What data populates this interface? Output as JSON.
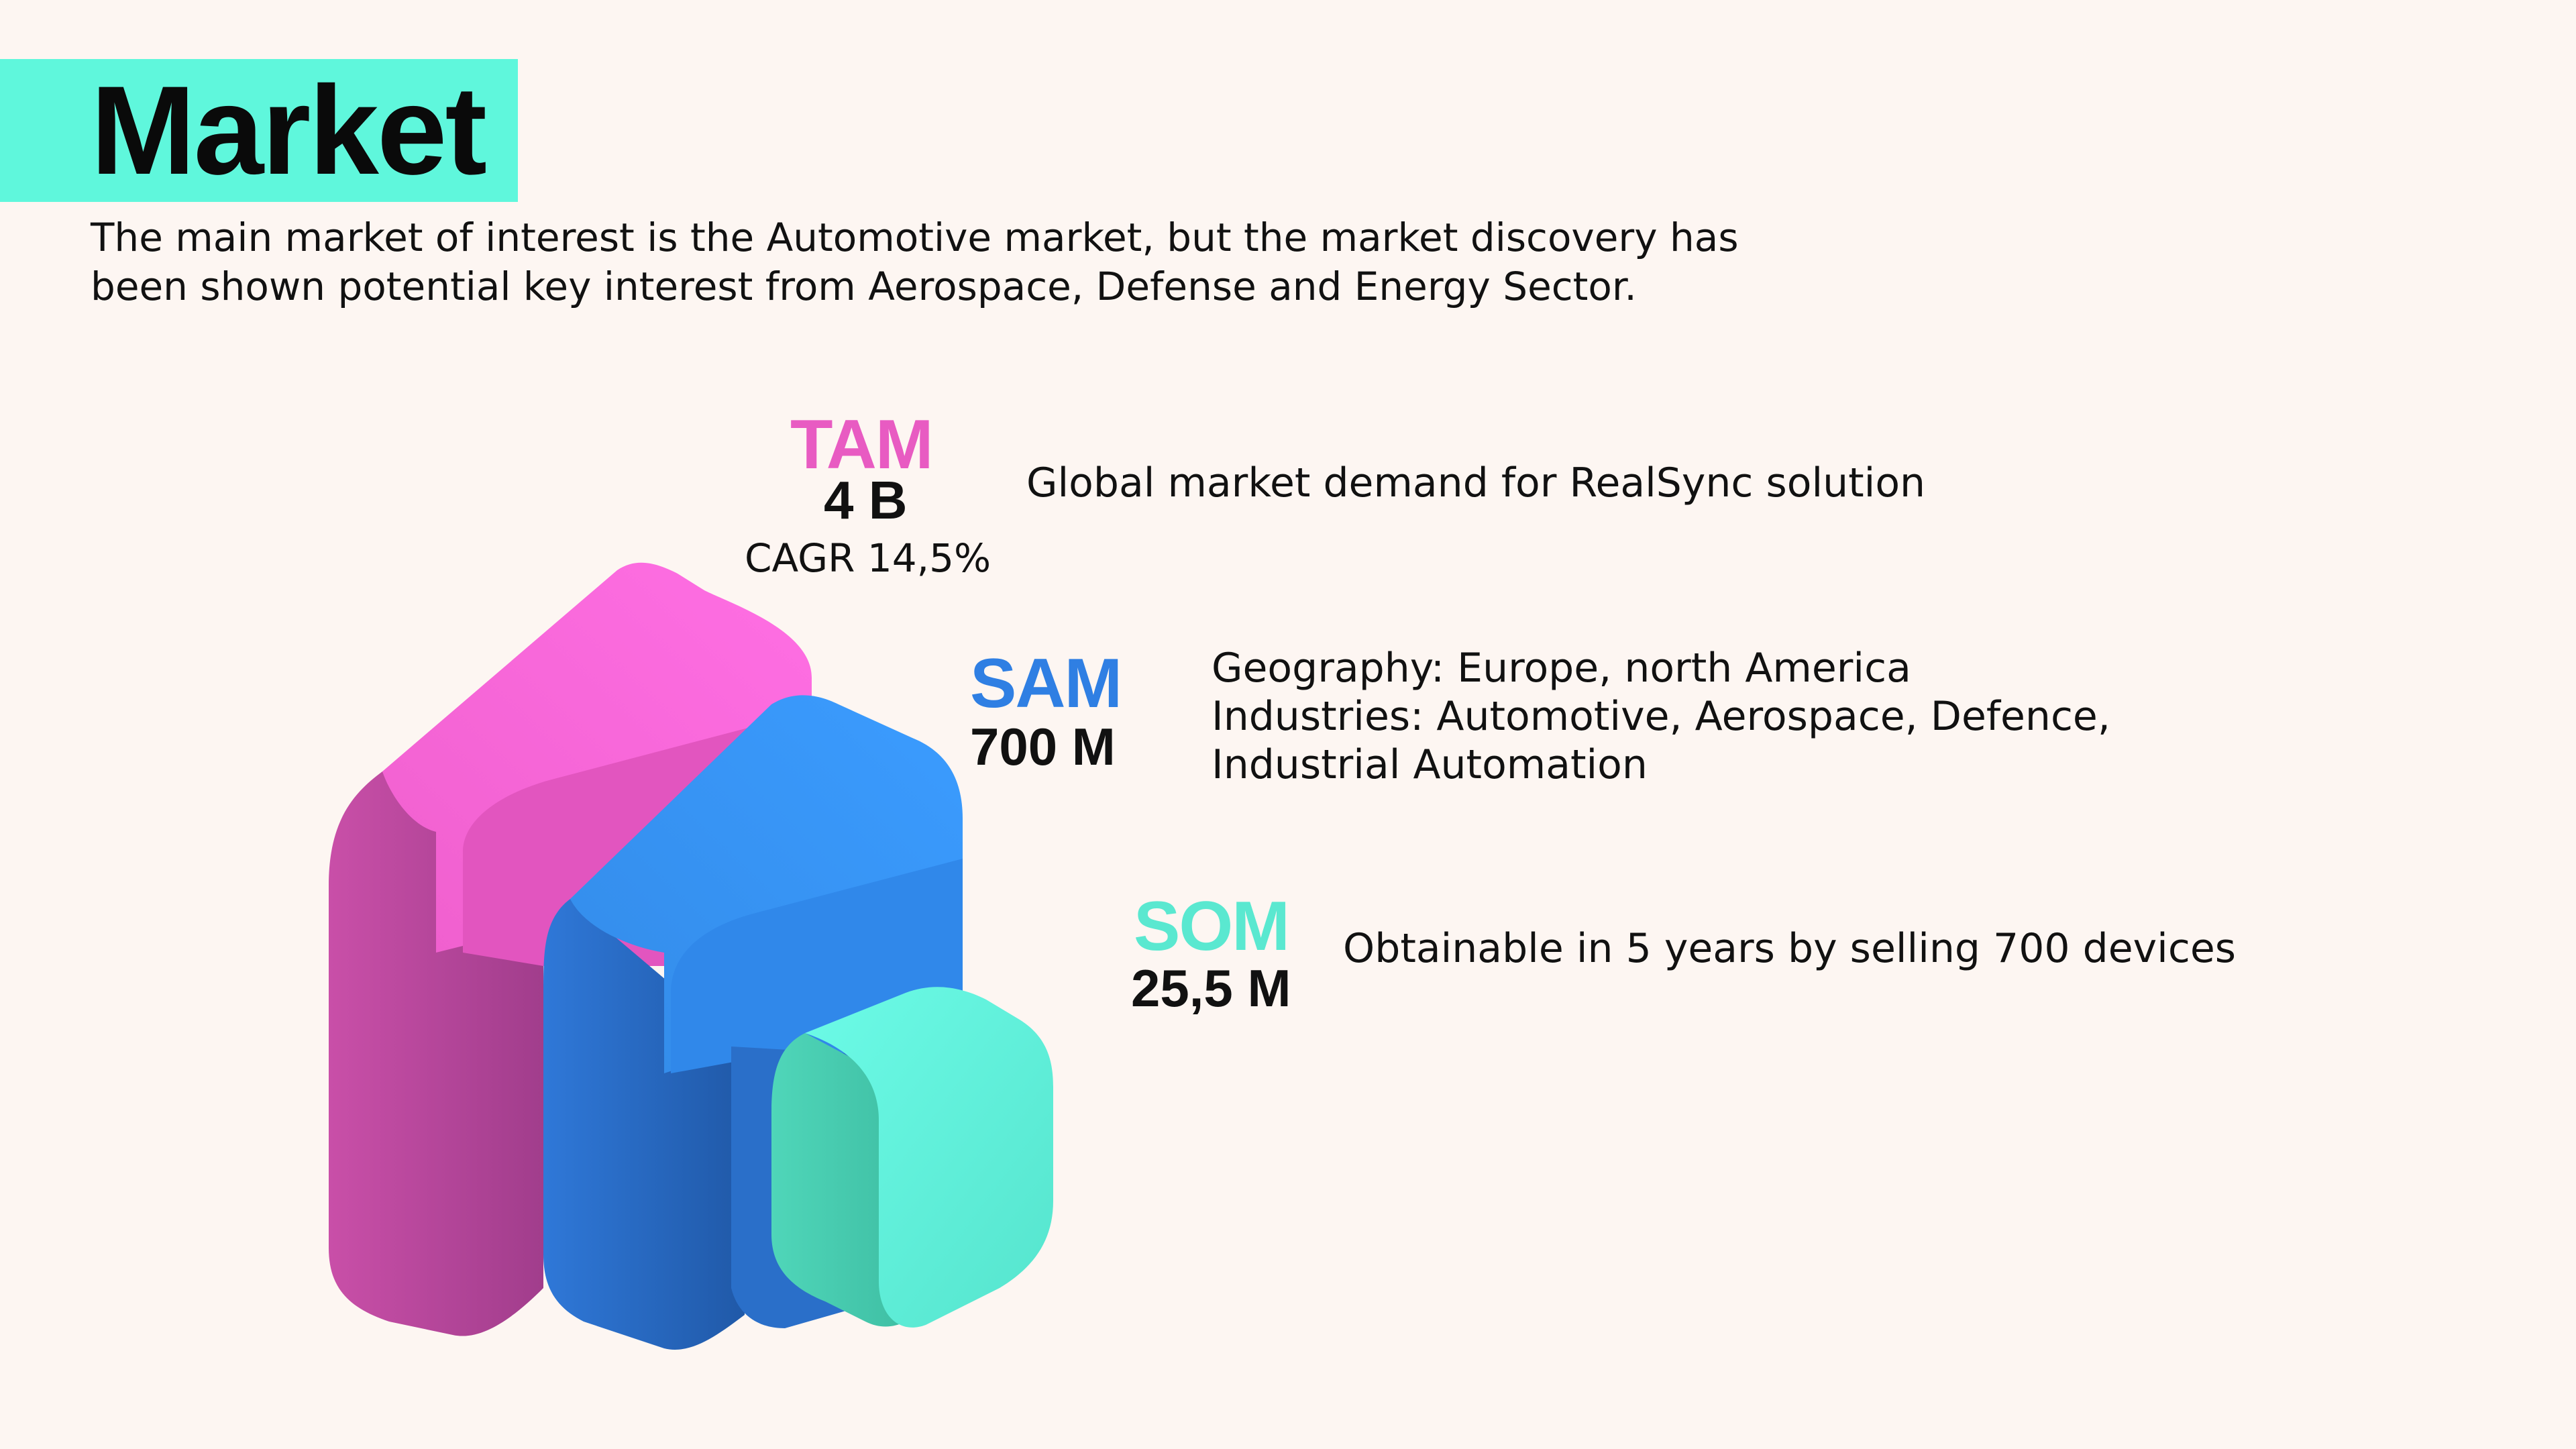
{
  "header": {
    "title": "Market",
    "intro_line_1": "The main market of interest is the Automotive market, but the market discovery has",
    "intro_line_2": "been shown potential key interest from Aerospace, Defense and Energy Sector."
  },
  "colors": {
    "accent_band": "#5ff7dc",
    "tam": "#e85bc2",
    "sam": "#2f7fe3",
    "som": "#5ae8d0"
  },
  "tam": {
    "label": "TAM",
    "value": "4 B",
    "cagr": "CAGR 14,5%",
    "description": "Global  market demand for RealSync solution"
  },
  "sam": {
    "label": "SAM",
    "value": "700 M",
    "description_line_1": "Geography: Europe, north America",
    "description_line_2": "Industries: Automotive, Aerospace, Defence,",
    "description_line_3": "Industrial Automation"
  },
  "som": {
    "label": "SOM",
    "value": "25,5 M",
    "description": "Obtainable in 5 years by selling 700 devices"
  }
}
